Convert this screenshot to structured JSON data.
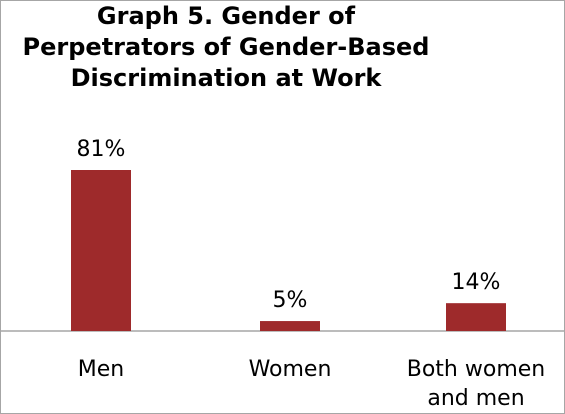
{
  "chart_data": {
    "type": "bar",
    "title_lines": [
      "Graph 5. Gender of",
      "Perpetrators of Gender-Based",
      "Discrimination at Work"
    ],
    "categories": [
      [
        "Men"
      ],
      [
        "Women"
      ],
      [
        "Both women",
        "and men"
      ]
    ],
    "values": [
      81,
      5,
      14
    ],
    "value_labels": [
      "81%",
      "5%",
      "14%"
    ],
    "xlabel": "",
    "ylabel": "",
    "bar_color": "#9e2a2b",
    "axis_color": "#a6a6a6",
    "grid": false,
    "legend": "none"
  }
}
